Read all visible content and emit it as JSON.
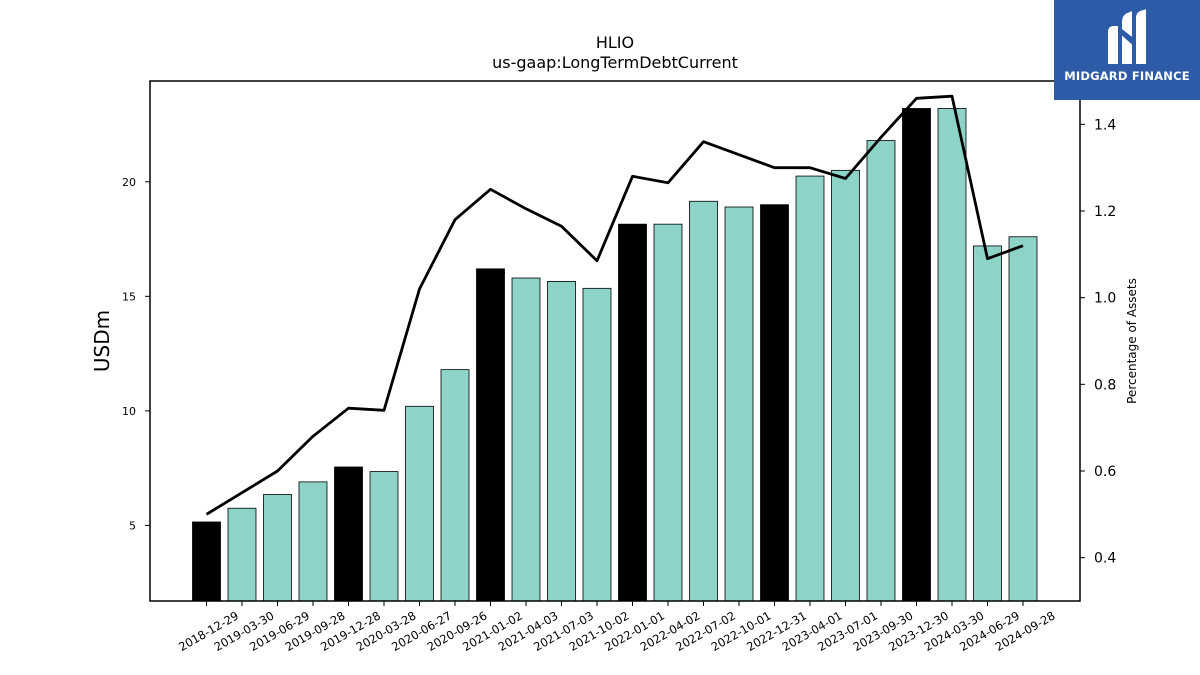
{
  "brand": {
    "name": "MIDGARD FINANCE",
    "logo_icon": "midgard-finance-logo-icon",
    "background": "#2d5ba8"
  },
  "chart_data": {
    "type": "bar",
    "title": "HLIO",
    "subtitle": "us-gaap:LongTermDebtCurrent",
    "ylabel": "USDm",
    "y2label": "Percentage of Assets",
    "ylim": [
      1.7,
      24.4
    ],
    "y2lim": [
      0.3,
      1.5
    ],
    "yticks": [
      5,
      10,
      15,
      20
    ],
    "y2ticks": [
      0.4,
      0.6,
      0.8,
      1.0,
      1.2,
      1.4
    ],
    "categories": [
      "2018-12-29",
      "2019-03-30",
      "2019-06-29",
      "2019-09-28",
      "2019-12-28",
      "2020-03-28",
      "2020-06-27",
      "2020-09-26",
      "2021-01-02",
      "2021-04-03",
      "2021-07-03",
      "2021-10-02",
      "2022-01-01",
      "2022-04-02",
      "2022-07-02",
      "2022-10-01",
      "2022-12-31",
      "2023-04-01",
      "2023-07-01",
      "2023-09-30",
      "2023-12-30",
      "2024-03-30",
      "2024-06-29",
      "2024-09-28"
    ],
    "values": [
      5.15,
      5.75,
      6.35,
      6.9,
      7.55,
      7.35,
      10.2,
      11.8,
      16.2,
      15.8,
      15.65,
      15.35,
      18.15,
      18.15,
      19.15,
      18.9,
      19.0,
      20.25,
      20.5,
      21.8,
      23.2,
      23.2,
      17.2,
      17.6
    ],
    "highlight": [
      true,
      false,
      false,
      false,
      true,
      false,
      false,
      false,
      true,
      false,
      false,
      false,
      true,
      false,
      false,
      false,
      true,
      false,
      false,
      false,
      true,
      false,
      false,
      false
    ],
    "series": [
      {
        "name": "Percentage of Assets",
        "axis": "right",
        "type": "line",
        "values": [
          0.5,
          0.55,
          0.6,
          0.68,
          0.745,
          0.74,
          1.02,
          1.18,
          1.25,
          1.205,
          1.165,
          1.085,
          1.28,
          1.265,
          1.36,
          1.33,
          1.3,
          1.3,
          1.275,
          1.37,
          1.46,
          1.465,
          1.09,
          1.12
        ]
      }
    ],
    "colors": {
      "bar": "#8dd3c7",
      "highlight_bar": "#000000",
      "line": "#000000"
    }
  }
}
